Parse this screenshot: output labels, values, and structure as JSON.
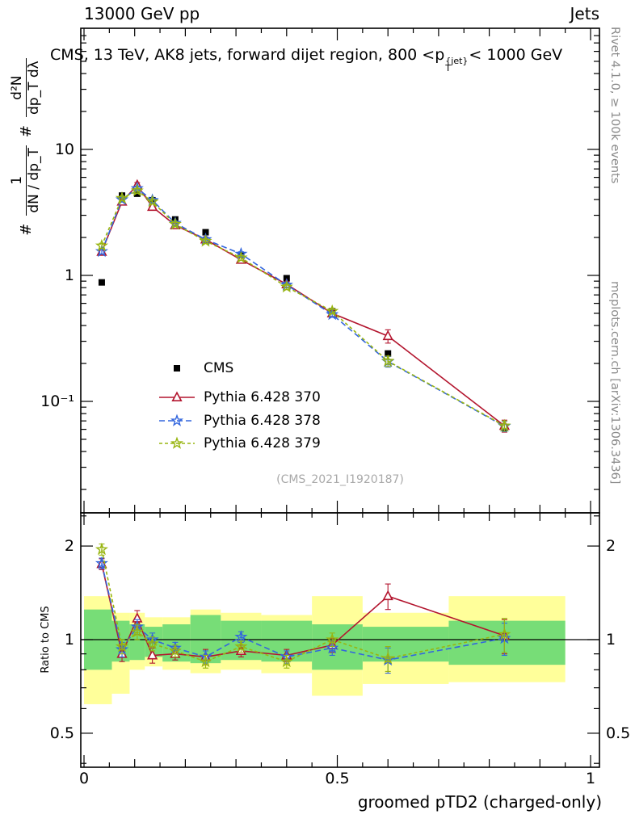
{
  "header": {
    "left": "13000 GeV pp",
    "right": "Jets"
  },
  "title": {
    "pre": "CMS, 13 TeV, AK8 jets, forward dijet region, 800 <p",
    "sup": "{jet}",
    "sub": "T",
    "post": "< 1000 GeV"
  },
  "watermark": "(CMS_2021_I1920187)",
  "side_captions": {
    "top": "Rivet 4.1.0, ≥ 100k events",
    "bottom": "mcplots.cern.ch [arXiv:1306.3436]"
  },
  "ylabel_top": {
    "hash1": "#",
    "frac1_num": "1",
    "frac1_den": "dN / dp_T",
    "hash2": "#",
    "frac2_num": "d²N",
    "frac2_den": "dp_T dλ"
  },
  "ylabel_ratio": "Ratio to CMS",
  "chart_data": {
    "type": "line",
    "title": "CMS, 13 TeV, AK8 jets, forward dijet region, 800 <pT{jet}< 1000 GeV",
    "x": [
      0.035,
      0.075,
      0.105,
      0.135,
      0.18,
      0.24,
      0.31,
      0.4,
      0.49,
      0.6,
      0.83
    ],
    "series": [
      {
        "name": "CMS",
        "color": "#000000",
        "marker": "square",
        "line": "none",
        "dash": null,
        "values": [
          0.88,
          4.3,
          4.45,
          3.95,
          2.78,
          2.2,
          1.45,
          0.95,
          0.52,
          0.24,
          0.062
        ],
        "errors": [
          0.04,
          0.12,
          0.12,
          0.11,
          0.08,
          0.06,
          0.05,
          0.03,
          0.02,
          0.01,
          0.003
        ]
      },
      {
        "name": "Pythia 6.428 370",
        "color": "#b3152e",
        "marker": "triangle",
        "line": "solid",
        "dash": null,
        "values": [
          1.54,
          3.85,
          5.2,
          3.5,
          2.5,
          1.93,
          1.33,
          0.85,
          0.5,
          0.33,
          0.064
        ],
        "errors": [
          0.08,
          0.18,
          0.25,
          0.17,
          0.12,
          0.09,
          0.06,
          0.04,
          0.03,
          0.04,
          0.007
        ],
        "ratio": [
          1.75,
          0.9,
          1.17,
          0.89,
          0.9,
          0.88,
          0.92,
          0.89,
          0.96,
          1.38,
          1.03
        ],
        "ratio_err": [
          0.07,
          0.05,
          0.07,
          0.05,
          0.04,
          0.05,
          0.04,
          0.04,
          0.05,
          0.13,
          0.13
        ]
      },
      {
        "name": "Pythia 6.428 378",
        "color": "#3366dd",
        "marker": "star",
        "line": "dashed",
        "dash": "7 4",
        "values": [
          1.55,
          4.0,
          4.9,
          3.95,
          2.6,
          1.93,
          1.48,
          0.84,
          0.49,
          0.207,
          0.0635
        ],
        "errors": [
          0.07,
          0.15,
          0.2,
          0.15,
          0.1,
          0.08,
          0.06,
          0.04,
          0.025,
          0.02,
          0.006
        ],
        "ratio": [
          1.76,
          0.93,
          1.1,
          1.0,
          0.94,
          0.88,
          1.02,
          0.88,
          0.94,
          0.86,
          1.01
        ],
        "ratio_err": [
          0.07,
          0.05,
          0.06,
          0.05,
          0.04,
          0.04,
          0.04,
          0.04,
          0.05,
          0.08,
          0.12
        ]
      },
      {
        "name": "Pythia 6.428 379",
        "color": "#98b510",
        "marker": "star",
        "line": "dashed",
        "dash": "4 3",
        "values": [
          1.72,
          4.1,
          4.7,
          3.85,
          2.55,
          1.87,
          1.38,
          0.81,
          0.52,
          0.209,
          0.064
        ],
        "errors": [
          0.08,
          0.16,
          0.2,
          0.15,
          0.1,
          0.08,
          0.06,
          0.04,
          0.025,
          0.02,
          0.006
        ],
        "ratio": [
          1.95,
          0.95,
          1.06,
          0.97,
          0.92,
          0.85,
          0.95,
          0.85,
          1.0,
          0.87,
          1.04
        ],
        "ratio_err": [
          0.08,
          0.05,
          0.06,
          0.05,
          0.04,
          0.04,
          0.04,
          0.04,
          0.05,
          0.08,
          0.13
        ]
      }
    ],
    "ratio_bands": {
      "yellow_color": "#ffff9a",
      "green_color": "#77dd77",
      "edges": [
        0.0,
        0.055,
        0.09,
        0.12,
        0.155,
        0.21,
        0.27,
        0.35,
        0.45,
        0.55,
        0.72,
        0.95
      ],
      "yellow": [
        [
          0.62,
          1.38
        ],
        [
          0.67,
          1.22
        ],
        [
          0.8,
          1.22
        ],
        [
          0.82,
          1.18
        ],
        [
          0.8,
          1.18
        ],
        [
          0.78,
          1.25
        ],
        [
          0.8,
          1.22
        ],
        [
          0.78,
          1.2
        ],
        [
          0.66,
          1.38
        ],
        [
          0.72,
          1.22
        ],
        [
          0.73,
          1.38
        ]
      ],
      "green": [
        [
          0.8,
          1.25
        ],
        [
          0.85,
          1.15
        ],
        [
          0.86,
          1.12
        ],
        [
          0.88,
          1.1
        ],
        [
          0.85,
          1.12
        ],
        [
          0.84,
          1.2
        ],
        [
          0.86,
          1.15
        ],
        [
          0.85,
          1.15
        ],
        [
          0.8,
          1.12
        ],
        [
          0.85,
          1.1
        ],
        [
          0.83,
          1.15
        ]
      ]
    },
    "axes": {
      "x": {
        "min": 0,
        "max": 1,
        "title": "groomed pTD2 (charged-only)",
        "ticks": [
          {
            "v": 0,
            "label": "0"
          },
          {
            "v": 0.5,
            "label": "0.5"
          },
          {
            "v": 1,
            "label": "1"
          }
        ]
      },
      "y_top": {
        "scale": "log",
        "range": [
          0.013,
          91
        ],
        "ticks": [
          {
            "v": 10,
            "label": "10"
          },
          {
            "v": 1,
            "label": "1"
          },
          {
            "v": 0.1,
            "label": "10⁻¹"
          }
        ]
      },
      "y_ratio": {
        "scale": "log",
        "range": [
          0.39,
          2.56
        ],
        "ticks": [
          {
            "v": 2,
            "label": "2"
          },
          {
            "v": 1,
            "label": "1"
          },
          {
            "v": 0.5,
            "label": "0.5"
          }
        ]
      }
    }
  }
}
